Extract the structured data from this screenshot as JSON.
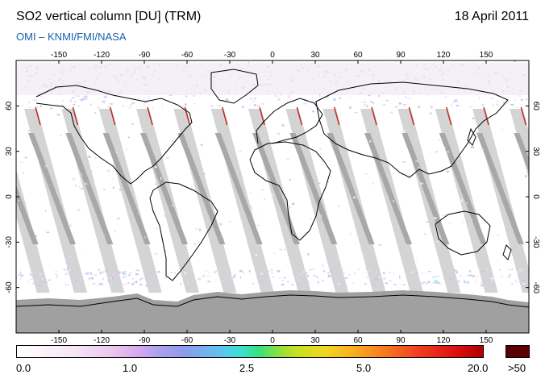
{
  "header": {
    "title": "SO2 vertical column [DU] (TRM)",
    "date": "18 April 2011",
    "subtitle": "OMI  –  KNMI/FMI/NASA"
  },
  "map": {
    "projection": "equirectangular",
    "longitude_ticks": [
      "-150",
      "-120",
      "-90",
      "-60",
      "-30",
      "0",
      "30",
      "60",
      "90",
      "120",
      "150"
    ],
    "latitude_ticks": [
      "60",
      "30",
      "0",
      "-30",
      "-60"
    ],
    "orbit_swath_count": 14,
    "colors": {
      "gap_light": "#d4d4d4",
      "gap_dark": "#a8a8a8",
      "polar_night": "#a0a0a0",
      "coast": "#000000",
      "so2_high": "#c03018"
    }
  },
  "colorbar": {
    "labels": [
      "0.0",
      "1.0",
      "2.5",
      "5.0",
      "20.0"
    ],
    "overflow_label": ">50",
    "overflow_color": "#5a0000"
  }
}
